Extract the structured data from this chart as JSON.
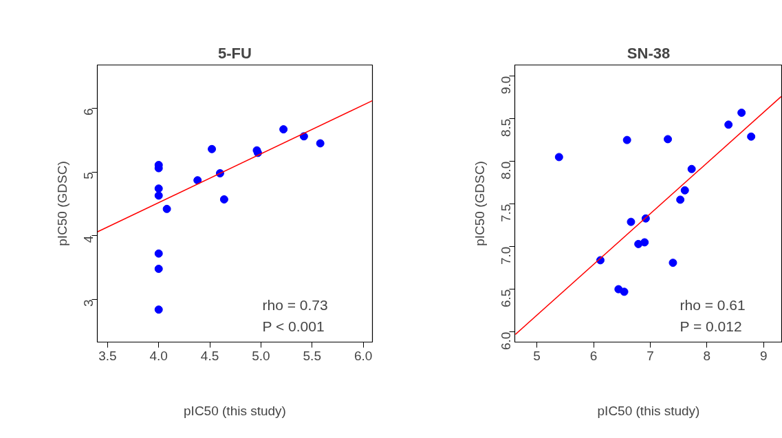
{
  "chart_data": [
    {
      "type": "scatter",
      "title": "5-FU",
      "xlabel": "pIC50 (this study)",
      "ylabel": "pIC50 (GDSC)",
      "xlim": [
        3.4,
        6.09
      ],
      "ylim": [
        2.33,
        6.68
      ],
      "xticks": [
        3.5,
        {
          "value": 4,
          "label": "4.0"
        },
        4.5,
        {
          "value": 5,
          "label": "5.0"
        },
        5.5,
        {
          "value": 6,
          "label": "6.0"
        }
      ],
      "yticks": [
        3,
        4,
        5,
        6
      ],
      "grid": false,
      "annotations": [
        "rho = 0.73",
        "P < 0.001"
      ],
      "series": [
        {
          "color": "#0000ff",
          "marker": "circle",
          "x": [
            4.0,
            4.0,
            4.0,
            4.0,
            4.08,
            4.0,
            4.0,
            4.0,
            4.38,
            4.52,
            4.6,
            4.64,
            4.96,
            4.97,
            5.22,
            5.42,
            5.58
          ],
          "values": [
            5.11,
            5.06,
            4.74,
            4.63,
            4.42,
            3.72,
            3.48,
            2.84,
            4.87,
            5.36,
            4.98,
            4.57,
            5.34,
            5.3,
            5.67,
            5.56,
            5.45
          ]
        },
        {
          "type": "line",
          "color": "#ff0000",
          "x": [
            3.4,
            6.09
          ],
          "values": [
            4.06,
            6.12
          ]
        }
      ]
    },
    {
      "type": "scatter",
      "title": "SN-38",
      "xlabel": "pIC50 (this study)",
      "ylabel": "pIC50 (GDSC)",
      "xlim": [
        4.61,
        9.33
      ],
      "ylim": [
        5.88,
        9.13
      ],
      "xticks": [
        5,
        6,
        7,
        8,
        9
      ],
      "yticks": [
        {
          "value": 6,
          "label": "6.0"
        },
        6.5,
        {
          "value": 7,
          "label": "7.0"
        },
        7.5,
        {
          "value": 8,
          "label": "8.0"
        },
        8.5,
        {
          "value": 9,
          "label": "9.0"
        }
      ],
      "grid": false,
      "annotations": [
        "rho = 0.61",
        "P = 0.012"
      ],
      "series": [
        {
          "color": "#0000ff",
          "marker": "circle",
          "x": [
            5.39,
            6.59,
            7.31,
            8.38,
            8.61,
            8.78,
            7.73,
            7.61,
            7.53,
            6.66,
            6.92,
            6.79,
            6.9,
            6.12,
            7.4,
            6.44,
            6.54
          ],
          "values": [
            8.05,
            8.25,
            8.26,
            8.43,
            8.57,
            8.29,
            7.91,
            7.66,
            7.55,
            7.29,
            7.33,
            7.03,
            7.05,
            6.84,
            6.81,
            6.5,
            6.47
          ]
        },
        {
          "type": "line",
          "color": "#ff0000",
          "x": [
            4.62,
            9.31
          ],
          "values": [
            5.97,
            8.76
          ]
        }
      ]
    }
  ]
}
